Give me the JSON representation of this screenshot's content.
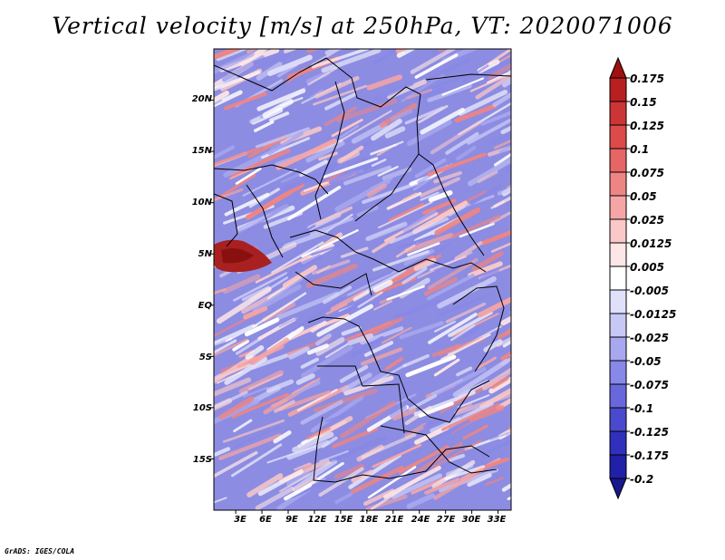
{
  "title": "Vertical velocity [m/s] at 250hPa, VT: 2020071006",
  "credit": "GrADS: IGES/COLA",
  "chart_data": {
    "type": "heatmap",
    "variable": "Vertical velocity",
    "units": "m/s",
    "level": "250hPa",
    "valid_time": "2020071006",
    "lat_tick_labels": [
      "20N",
      "15N",
      "10N",
      "5N",
      "EQ",
      "5S",
      "10S",
      "15S"
    ],
    "lat_tick_values": [
      20,
      15,
      10,
      5,
      0,
      -5,
      -10,
      -15
    ],
    "lon_tick_labels": [
      "3E",
      "6E",
      "9E",
      "12E",
      "15E",
      "18E",
      "21E",
      "24E",
      "27E",
      "30E",
      "33E"
    ],
    "lon_tick_values": [
      3,
      6,
      9,
      12,
      15,
      18,
      21,
      24,
      27,
      30,
      33
    ],
    "lat_range": [
      -20,
      25
    ],
    "lon_range": [
      0.5,
      34.5
    ],
    "colorbar_labels": [
      "0.175",
      "0.15",
      "0.125",
      "0.1",
      "0.075",
      "0.05",
      "0.025",
      "0.0125",
      "0.005",
      "-0.005",
      "-0.0125",
      "-0.025",
      "-0.05",
      "-0.075",
      "-0.1",
      "-0.125",
      "-0.175",
      "-0.2"
    ],
    "colorbar_colors": [
      "#a01010",
      "#b82020",
      "#cc3535",
      "#dd4a4a",
      "#e66565",
      "#ee8585",
      "#f5a5a5",
      "#fac8c8",
      "#fde6e6",
      "#ffffff",
      "#e0e0fb",
      "#c8c8f6",
      "#a8a8f0",
      "#8888e8",
      "#6868dc",
      "#4a4ace",
      "#3030bc",
      "#2020a8",
      "#18188c"
    ]
  }
}
